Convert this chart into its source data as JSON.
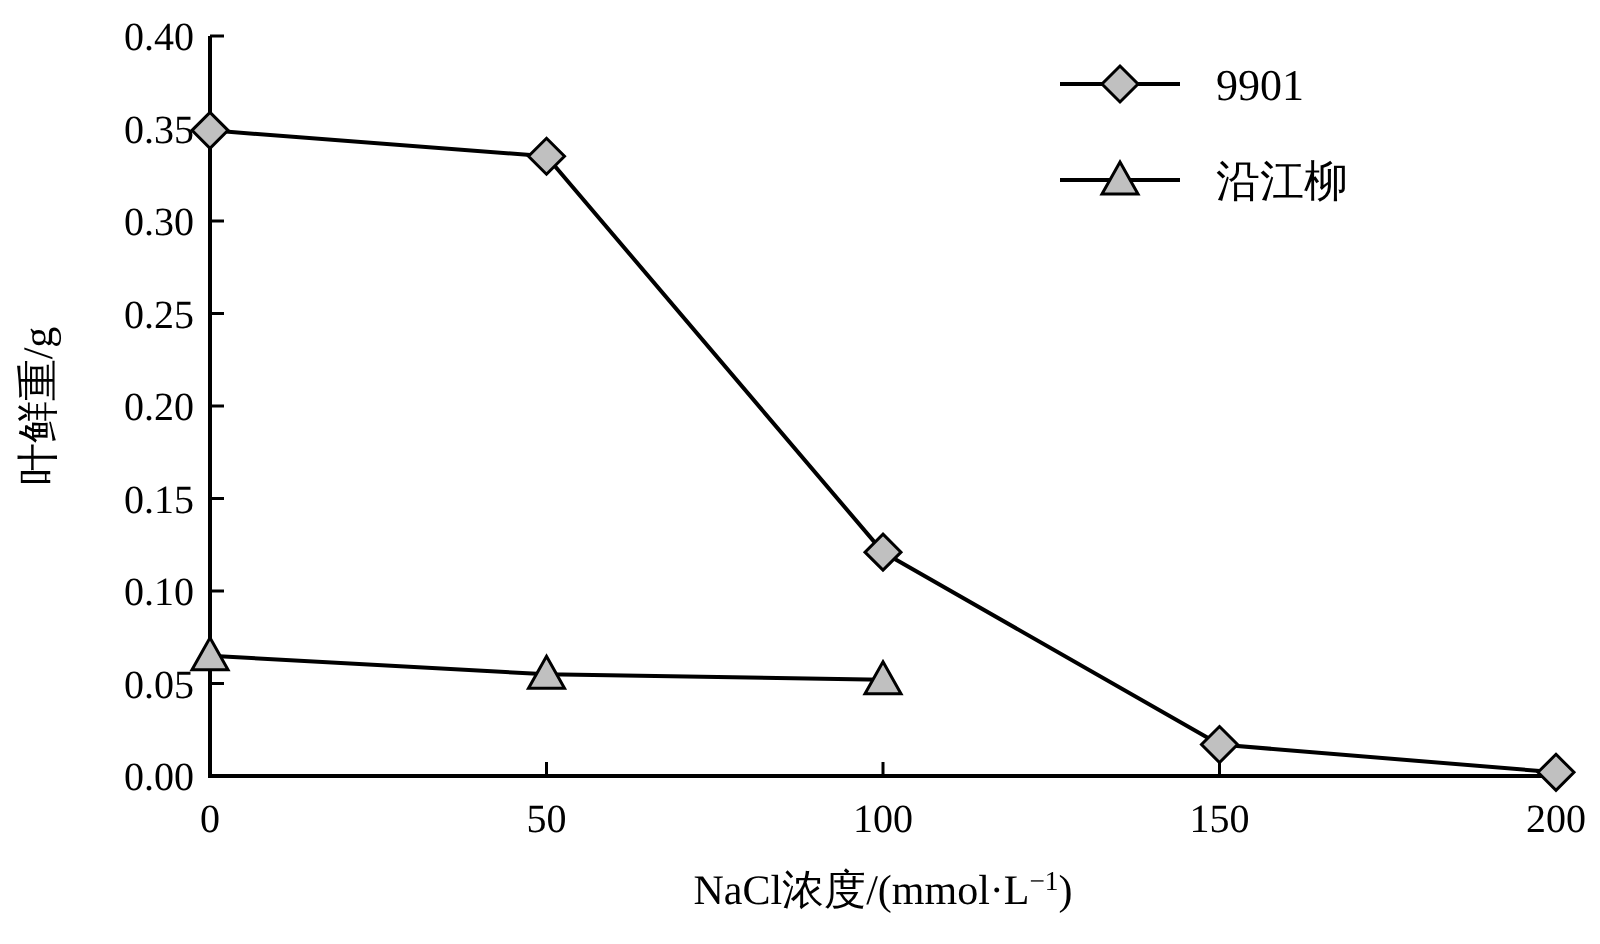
{
  "chart_data": {
    "type": "line",
    "xlabel": "NaCl浓度/(mmol·L$^{−1}$)",
    "ylabel": "叶鲜重/g",
    "x": [
      0,
      50,
      100,
      150,
      200
    ],
    "xlim": [
      0,
      200
    ],
    "xticks": [
      0,
      50,
      100,
      150,
      200
    ],
    "ylim": [
      0,
      0.4
    ],
    "yticks": [
      {
        "value": 0,
        "label": "0.00"
      },
      {
        "value": 0.05,
        "label": "0.05"
      },
      {
        "value": 0.1,
        "label": "0.10"
      },
      {
        "value": 0.15,
        "label": "0.15"
      },
      {
        "value": 0.2,
        "label": "0.20"
      },
      {
        "value": 0.25,
        "label": "0.25"
      },
      {
        "value": 0.3,
        "label": "0.30"
      },
      {
        "value": 0.35,
        "label": "0.35"
      },
      {
        "value": 0.4,
        "label": "0.40"
      }
    ],
    "grid": false,
    "legend": "top right",
    "line_style": "solid",
    "series": [
      {
        "name": "9901",
        "color": "#000000",
        "marker": "diamond",
        "values": [
          0.349,
          0.335,
          0.121,
          0.017,
          0.002
        ]
      },
      {
        "name": "沿江柳",
        "color": "#000000",
        "marker": "triangle",
        "values": [
          0.065,
          0.055,
          0.052,
          null,
          null
        ]
      }
    ]
  }
}
